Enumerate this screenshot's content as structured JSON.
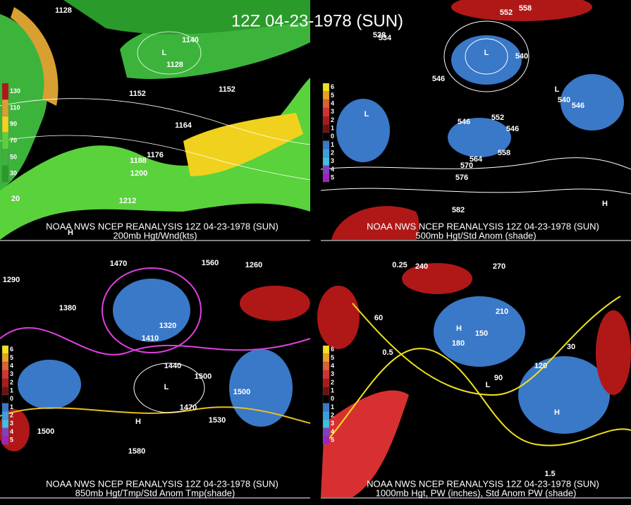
{
  "title": "12Z 04-23-1978 (SUN)",
  "panels": [
    {
      "source": "NOAA NWS NCEP REANALYSIS 12Z 04-23-1978 (SUN)",
      "caption": "200mb Hgt/Wnd(kts)",
      "colorbar": [
        "130",
        "110",
        "90",
        "70",
        "50",
        "30"
      ],
      "labels": [
        "1128",
        "1140",
        "1128",
        "1152",
        "1152",
        "1164",
        "1176",
        "1188",
        "1200",
        "1212",
        "20",
        "L",
        "H"
      ]
    },
    {
      "source": "NOAA NWS NCEP REANALYSIS 12Z 04-23-1978 (SUN)",
      "caption": "500mb Hgt/Std Anom (shade)",
      "colorbar": [
        "6",
        "5",
        "4",
        "3",
        "2",
        "1",
        "0",
        "1",
        "2",
        "3",
        "4",
        "5"
      ],
      "labels": [
        "552",
        "558",
        "528",
        "534",
        "540",
        "546",
        "552",
        "546",
        "546",
        "540",
        "546",
        "558",
        "564",
        "570",
        "576",
        "582",
        "L",
        "L",
        "L",
        "H"
      ]
    },
    {
      "source": "NOAA NWS NCEP REANALYSIS 12Z 04-23-1978 (SUN)",
      "caption": "850mb Hgt/Tmp/Std Anom Tmp(shade)",
      "colorbar": [
        "6",
        "5",
        "4",
        "3",
        "2",
        "1",
        "0",
        "1",
        "2",
        "3",
        "4",
        "5"
      ],
      "labels": [
        "1470",
        "1560",
        "1260",
        "1290",
        "1380",
        "1320",
        "1410",
        "1440",
        "1500",
        "1470",
        "1530",
        "1500",
        "1500",
        "1580",
        "L",
        "H"
      ]
    },
    {
      "source": "NOAA NWS NCEP REANALYSIS 12Z 04-23-1978 (SUN)",
      "caption": "1000mb Hgt, PW (inches), Std Anom PW (shade)",
      "colorbar": [
        "6",
        "5",
        "4",
        "3",
        "2",
        "1",
        "0",
        "1",
        "2",
        "3",
        "4",
        "5"
      ],
      "labels": [
        "270",
        "240",
        "210",
        "180",
        "150",
        "120",
        "90",
        "60",
        "30",
        "0.25",
        "0.5",
        "1.5",
        "H",
        "H",
        "L"
      ]
    }
  ]
}
